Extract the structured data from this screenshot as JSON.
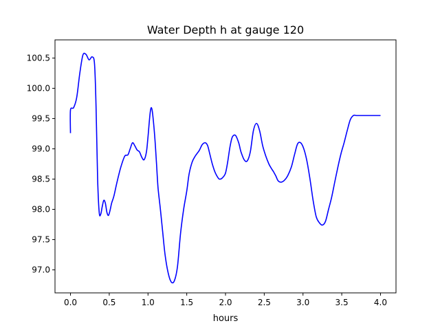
{
  "chart_data": {
    "type": "line",
    "title": "Water Depth h at gauge 120",
    "xlabel": "hours",
    "ylabel": "",
    "xlim": [
      -0.2,
      4.2
    ],
    "ylim": [
      96.62,
      100.8
    ],
    "xticks": [
      0.0,
      0.5,
      1.0,
      1.5,
      2.0,
      2.5,
      3.0,
      3.5,
      4.0
    ],
    "xtick_labels": [
      "0.0",
      "0.5",
      "1.0",
      "1.5",
      "2.0",
      "2.5",
      "3.0",
      "3.5",
      "4.0"
    ],
    "yticks": [
      97.0,
      97.5,
      98.0,
      98.5,
      99.0,
      99.5,
      100.0,
      100.5
    ],
    "ytick_labels": [
      "97.0",
      "97.5",
      "98.0",
      "98.5",
      "99.0",
      "99.5",
      "100.0",
      "100.5"
    ],
    "grid": false,
    "series": [
      {
        "name": "",
        "color": "#0000ff",
        "x": [
          0.0,
          0.0,
          0.04,
          0.08,
          0.12,
          0.16,
          0.2,
          0.24,
          0.28,
          0.31,
          0.33,
          0.35,
          0.37,
          0.39,
          0.41,
          0.43,
          0.45,
          0.47,
          0.49,
          0.51,
          0.53,
          0.56,
          0.6,
          0.65,
          0.7,
          0.74,
          0.77,
          0.8,
          0.83,
          0.86,
          0.89,
          0.92,
          0.95,
          0.98,
          1.0,
          1.03,
          1.05,
          1.07,
          1.09,
          1.11,
          1.13,
          1.16,
          1.19,
          1.22,
          1.26,
          1.3,
          1.34,
          1.38,
          1.42,
          1.46,
          1.5,
          1.53,
          1.57,
          1.61,
          1.66,
          1.7,
          1.74,
          1.77,
          1.8,
          1.83,
          1.86,
          1.89,
          1.92,
          1.96,
          2.0,
          2.03,
          2.06,
          2.09,
          2.13,
          2.17,
          2.2,
          2.24,
          2.28,
          2.32,
          2.36,
          2.4,
          2.44,
          2.48,
          2.52,
          2.56,
          2.59,
          2.62,
          2.65,
          2.68,
          2.72,
          2.76,
          2.8,
          2.85,
          2.89,
          2.93,
          2.97,
          3.01,
          3.05,
          3.09,
          3.13,
          3.17,
          3.21,
          3.25,
          3.29,
          3.33,
          3.37,
          3.41,
          3.45,
          3.49,
          3.53,
          3.57,
          3.61,
          3.65,
          3.69,
          3.73,
          3.77,
          3.81,
          3.85,
          3.89,
          3.93,
          3.97,
          4.0
        ],
        "y": [
          99.26,
          99.64,
          99.68,
          99.85,
          100.25,
          100.55,
          100.56,
          100.47,
          100.52,
          100.4,
          99.7,
          98.5,
          97.95,
          97.92,
          98.05,
          98.15,
          98.1,
          97.95,
          97.9,
          97.98,
          98.1,
          98.22,
          98.45,
          98.7,
          98.88,
          98.9,
          99.0,
          99.1,
          99.05,
          98.98,
          98.95,
          98.86,
          98.82,
          98.95,
          99.2,
          99.62,
          99.66,
          99.45,
          99.15,
          98.75,
          98.35,
          98.0,
          97.62,
          97.25,
          96.95,
          96.8,
          96.82,
          97.05,
          97.6,
          98.0,
          98.3,
          98.58,
          98.78,
          98.88,
          98.97,
          99.07,
          99.1,
          99.05,
          98.9,
          98.75,
          98.63,
          98.55,
          98.5,
          98.52,
          98.6,
          98.8,
          99.05,
          99.2,
          99.22,
          99.1,
          98.95,
          98.82,
          98.8,
          98.95,
          99.3,
          99.42,
          99.3,
          99.05,
          98.88,
          98.75,
          98.68,
          98.62,
          98.55,
          98.47,
          98.45,
          98.48,
          98.55,
          98.7,
          98.9,
          99.08,
          99.1,
          99.0,
          98.8,
          98.5,
          98.15,
          97.88,
          97.78,
          97.74,
          97.8,
          98.0,
          98.2,
          98.45,
          98.7,
          98.92,
          99.1,
          99.3,
          99.48,
          99.55,
          99.55,
          99.55,
          99.55,
          99.55,
          99.55,
          99.55,
          99.55,
          99.55,
          99.55
        ]
      }
    ]
  }
}
